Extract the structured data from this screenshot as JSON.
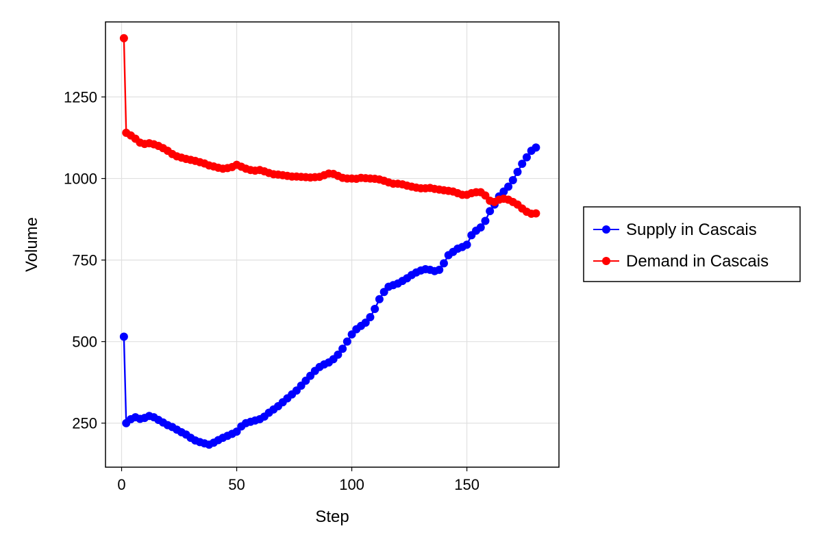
{
  "chart_data": {
    "type": "line",
    "xlabel": "Step",
    "ylabel": "Volume",
    "xlim": [
      -7,
      190
    ],
    "ylim": [
      115,
      1480
    ],
    "x_ticks": [
      0,
      50,
      100,
      150
    ],
    "y_ticks": [
      250,
      500,
      750,
      1000,
      1250
    ],
    "grid": true,
    "legend_position": "right",
    "colors": {
      "supply": "#0000ff",
      "demand": "#ff0000",
      "grid": "#e0e0e0"
    },
    "series": [
      {
        "name": "Supply in Cascais",
        "color": "#0000ff",
        "x": [
          1,
          2,
          4,
          6,
          8,
          10,
          12,
          14,
          16,
          18,
          20,
          22,
          24,
          26,
          28,
          30,
          32,
          34,
          36,
          38,
          40,
          42,
          44,
          46,
          48,
          50,
          52,
          54,
          56,
          58,
          60,
          62,
          64,
          66,
          68,
          70,
          72,
          74,
          76,
          78,
          80,
          82,
          84,
          86,
          88,
          90,
          92,
          94,
          96,
          98,
          100,
          102,
          104,
          106,
          108,
          110,
          112,
          114,
          116,
          118,
          120,
          122,
          124,
          126,
          128,
          130,
          132,
          134,
          136,
          138,
          140,
          142,
          144,
          146,
          148,
          150,
          152,
          154,
          156,
          158,
          160,
          162,
          164,
          166,
          168,
          170,
          172,
          174,
          176,
          178,
          180
        ],
        "y": [
          515,
          250,
          262,
          268,
          263,
          266,
          272,
          268,
          260,
          252,
          244,
          238,
          230,
          222,
          215,
          205,
          197,
          192,
          188,
          184,
          190,
          198,
          205,
          211,
          217,
          224,
          240,
          250,
          254,
          258,
          262,
          270,
          282,
          292,
          302,
          314,
          326,
          338,
          350,
          365,
          380,
          395,
          410,
          422,
          430,
          436,
          446,
          460,
          478,
          500,
          522,
          538,
          548,
          558,
          575,
          600,
          630,
          652,
          668,
          673,
          678,
          686,
          694,
          704,
          712,
          718,
          722,
          720,
          716,
          720,
          740,
          765,
          775,
          785,
          790,
          797,
          826,
          840,
          850,
          870,
          900,
          920,
          945,
          960,
          975,
          995,
          1020,
          1045,
          1065,
          1085,
          1095
        ]
      },
      {
        "name": "Demand in Cascais",
        "color": "#ff0000",
        "x": [
          1,
          2,
          4,
          6,
          8,
          10,
          12,
          14,
          16,
          18,
          20,
          22,
          24,
          26,
          28,
          30,
          32,
          34,
          36,
          38,
          40,
          42,
          44,
          46,
          48,
          50,
          52,
          54,
          56,
          58,
          60,
          62,
          64,
          66,
          68,
          70,
          72,
          74,
          76,
          78,
          80,
          82,
          84,
          86,
          88,
          90,
          92,
          94,
          96,
          98,
          100,
          102,
          104,
          106,
          108,
          110,
          112,
          114,
          116,
          118,
          120,
          122,
          124,
          126,
          128,
          130,
          132,
          134,
          136,
          138,
          140,
          142,
          144,
          146,
          148,
          150,
          152,
          154,
          156,
          158,
          160,
          162,
          164,
          166,
          168,
          170,
          172,
          174,
          176,
          178,
          180
        ],
        "y": [
          1430,
          1140,
          1132,
          1122,
          1110,
          1106,
          1108,
          1105,
          1100,
          1093,
          1085,
          1075,
          1068,
          1064,
          1060,
          1057,
          1054,
          1050,
          1046,
          1040,
          1037,
          1033,
          1030,
          1032,
          1035,
          1042,
          1036,
          1030,
          1026,
          1024,
          1026,
          1022,
          1017,
          1013,
          1012,
          1010,
          1008,
          1006,
          1006,
          1005,
          1004,
          1003,
          1004,
          1005,
          1010,
          1015,
          1014,
          1008,
          1002,
          1000,
          1000,
          999,
          1002,
          1001,
          1000,
          999,
          997,
          993,
          988,
          984,
          984,
          982,
          978,
          975,
          972,
          970,
          970,
          971,
          968,
          966,
          964,
          962,
          960,
          955,
          950,
          950,
          955,
          958,
          958,
          948,
          932,
          928,
          935,
          938,
          935,
          928,
          920,
          908,
          898,
          892,
          893
        ]
      }
    ]
  }
}
